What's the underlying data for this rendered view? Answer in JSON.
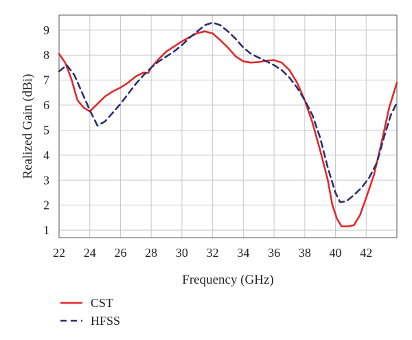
{
  "chart_data": {
    "type": "line",
    "xlabel": "Frequency (GHz)",
    "ylabel": "Realized Gain (dBi)",
    "xlim": [
      22,
      44
    ],
    "ylim": [
      0.7,
      9.6
    ],
    "xticks": [
      22,
      24,
      26,
      28,
      30,
      32,
      34,
      36,
      38,
      40,
      42
    ],
    "yticks": [
      1,
      2,
      3,
      4,
      5,
      6,
      7,
      8,
      9
    ],
    "grid": true,
    "legend_position": "bottom-left",
    "series": [
      {
        "name": "CST",
        "color": "#e0282a",
        "style": "solid",
        "points": [
          [
            22,
            8.05
          ],
          [
            22.4,
            7.7
          ],
          [
            22.8,
            7.05
          ],
          [
            23.2,
            6.2
          ],
          [
            23.6,
            5.9
          ],
          [
            24.0,
            5.75
          ],
          [
            24.5,
            6.05
          ],
          [
            25.0,
            6.35
          ],
          [
            25.5,
            6.55
          ],
          [
            26.0,
            6.7
          ],
          [
            26.5,
            6.9
          ],
          [
            27.0,
            7.15
          ],
          [
            27.5,
            7.3
          ],
          [
            27.8,
            7.28
          ],
          [
            28.0,
            7.5
          ],
          [
            28.5,
            7.85
          ],
          [
            29.0,
            8.15
          ],
          [
            29.5,
            8.35
          ],
          [
            30.0,
            8.55
          ],
          [
            30.5,
            8.72
          ],
          [
            31.0,
            8.88
          ],
          [
            31.5,
            8.95
          ],
          [
            32.0,
            8.87
          ],
          [
            32.5,
            8.6
          ],
          [
            33.0,
            8.3
          ],
          [
            33.5,
            7.95
          ],
          [
            34.0,
            7.75
          ],
          [
            34.5,
            7.7
          ],
          [
            35.0,
            7.72
          ],
          [
            35.5,
            7.78
          ],
          [
            36.0,
            7.8
          ],
          [
            36.5,
            7.7
          ],
          [
            37.0,
            7.4
          ],
          [
            37.5,
            6.9
          ],
          [
            38.0,
            6.2
          ],
          [
            38.5,
            5.3
          ],
          [
            39.0,
            4.2
          ],
          [
            39.5,
            3.0
          ],
          [
            39.8,
            2.0
          ],
          [
            40.1,
            1.45
          ],
          [
            40.4,
            1.15
          ],
          [
            40.8,
            1.15
          ],
          [
            41.2,
            1.2
          ],
          [
            41.6,
            1.6
          ],
          [
            42.0,
            2.3
          ],
          [
            42.5,
            3.2
          ],
          [
            43.0,
            4.5
          ],
          [
            43.5,
            5.9
          ],
          [
            44.0,
            6.9
          ]
        ]
      },
      {
        "name": "HFSS",
        "color": "#2b2f6e",
        "style": "dashed",
        "points": [
          [
            22,
            7.35
          ],
          [
            22.5,
            7.6
          ],
          [
            23.0,
            7.2
          ],
          [
            23.5,
            6.5
          ],
          [
            24.0,
            5.8
          ],
          [
            24.5,
            5.18
          ],
          [
            25.0,
            5.35
          ],
          [
            25.5,
            5.7
          ],
          [
            26.0,
            6.05
          ],
          [
            26.5,
            6.45
          ],
          [
            27.0,
            6.85
          ],
          [
            27.5,
            7.2
          ],
          [
            28.0,
            7.5
          ],
          [
            28.5,
            7.75
          ],
          [
            29.0,
            7.95
          ],
          [
            29.5,
            8.15
          ],
          [
            30.0,
            8.4
          ],
          [
            30.5,
            8.7
          ],
          [
            31.0,
            8.95
          ],
          [
            31.5,
            9.2
          ],
          [
            32.0,
            9.3
          ],
          [
            32.5,
            9.2
          ],
          [
            33.0,
            8.95
          ],
          [
            33.5,
            8.65
          ],
          [
            34.0,
            8.3
          ],
          [
            34.5,
            8.05
          ],
          [
            35.0,
            7.9
          ],
          [
            35.5,
            7.75
          ],
          [
            36.0,
            7.6
          ],
          [
            36.5,
            7.4
          ],
          [
            37.0,
            7.1
          ],
          [
            37.5,
            6.7
          ],
          [
            38.0,
            6.2
          ],
          [
            38.5,
            5.6
          ],
          [
            39.0,
            4.7
          ],
          [
            39.5,
            3.5
          ],
          [
            40.0,
            2.5
          ],
          [
            40.3,
            2.12
          ],
          [
            40.7,
            2.15
          ],
          [
            41.2,
            2.4
          ],
          [
            41.7,
            2.7
          ],
          [
            42.2,
            3.1
          ],
          [
            42.7,
            3.7
          ],
          [
            43.2,
            4.8
          ],
          [
            43.6,
            5.6
          ],
          [
            44.0,
            6.1
          ]
        ]
      }
    ]
  }
}
